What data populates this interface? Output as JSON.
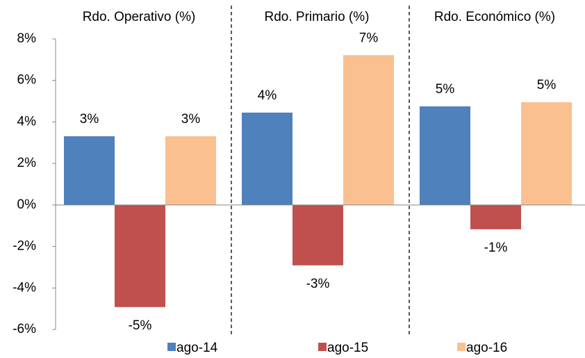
{
  "chart_data": {
    "type": "bar",
    "categories": [
      "Rdo. Operativo (%)",
      "Rdo. Primario (%)",
      "Rdo. Económico (%)"
    ],
    "series": [
      {
        "name": "ago-14",
        "color": "#4f81bd",
        "values": [
          3.31,
          4.45,
          4.75
        ],
        "value_labels": [
          "3%",
          "4%",
          "5%"
        ]
      },
      {
        "name": "ago-15",
        "color": "#c0504d",
        "values": [
          -4.92,
          -2.91,
          -1.17
        ],
        "value_labels": [
          "-5%",
          "-3%",
          "-1%"
        ]
      },
      {
        "name": "ago-16",
        "color": "#fac090",
        "values": [
          3.31,
          7.22,
          4.95
        ],
        "value_labels": [
          "3%",
          "7%",
          "5%"
        ]
      }
    ],
    "ylim": [
      -6,
      8
    ],
    "yticks": [
      {
        "value": -6,
        "label": "-6%"
      },
      {
        "value": -4,
        "label": "-4%"
      },
      {
        "value": -2,
        "label": "-2%"
      },
      {
        "value": 0,
        "label": "0%"
      },
      {
        "value": 2,
        "label": "2%"
      },
      {
        "value": 4,
        "label": "4%"
      },
      {
        "value": 6,
        "label": "6%"
      },
      {
        "value": 8,
        "label": "8%"
      }
    ],
    "legend": "bottom"
  }
}
